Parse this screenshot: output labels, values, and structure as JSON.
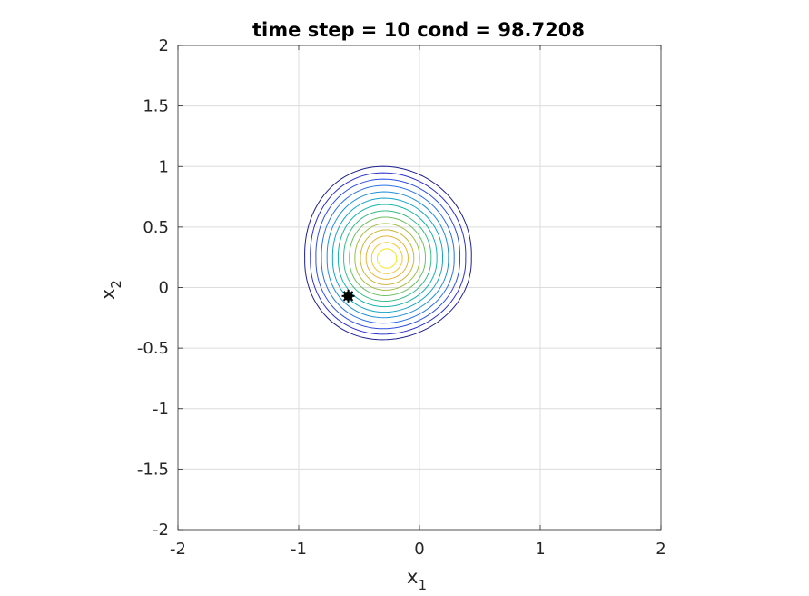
{
  "chart_data": {
    "type": "contour",
    "title": "time step = 10 cond = 98.7208",
    "xlabel": {
      "base": "x",
      "sub": "1"
    },
    "ylabel": {
      "base": "x",
      "sub": "2"
    },
    "xlim": [
      -2,
      2
    ],
    "ylim": [
      -2,
      2
    ],
    "xticks": [
      -2,
      -1,
      0,
      1,
      2
    ],
    "yticks": [
      -2,
      -1.5,
      -1,
      -0.5,
      0,
      0.5,
      1,
      1.5,
      2
    ],
    "xtick_labels": [
      "-2",
      "-1",
      "0",
      "1",
      "2"
    ],
    "ytick_labels": [
      "-2",
      "-1.5",
      "-1",
      "-0.5",
      "0",
      "0.5",
      "1",
      "1.5",
      "2"
    ],
    "grid": true,
    "contours": {
      "center": [
        -0.27,
        0.24
      ],
      "level_count": 14,
      "outer_extent": {
        "left": -0.95,
        "right": 0.43,
        "top": 1.0,
        "bottom": -0.43
      },
      "inner_radius": 0.08,
      "colormap": [
        "#1f1f8f",
        "#2c2ecb",
        "#2f4ee0",
        "#2970e8",
        "#1f8fd8",
        "#14a4c8",
        "#16b4aa",
        "#39bc86",
        "#6cc060",
        "#a0be45",
        "#cdb43a",
        "#e9b135",
        "#f8c42e",
        "#f6e51c"
      ]
    },
    "marker": {
      "x": -0.59,
      "y": -0.07,
      "color": "#000000"
    }
  }
}
